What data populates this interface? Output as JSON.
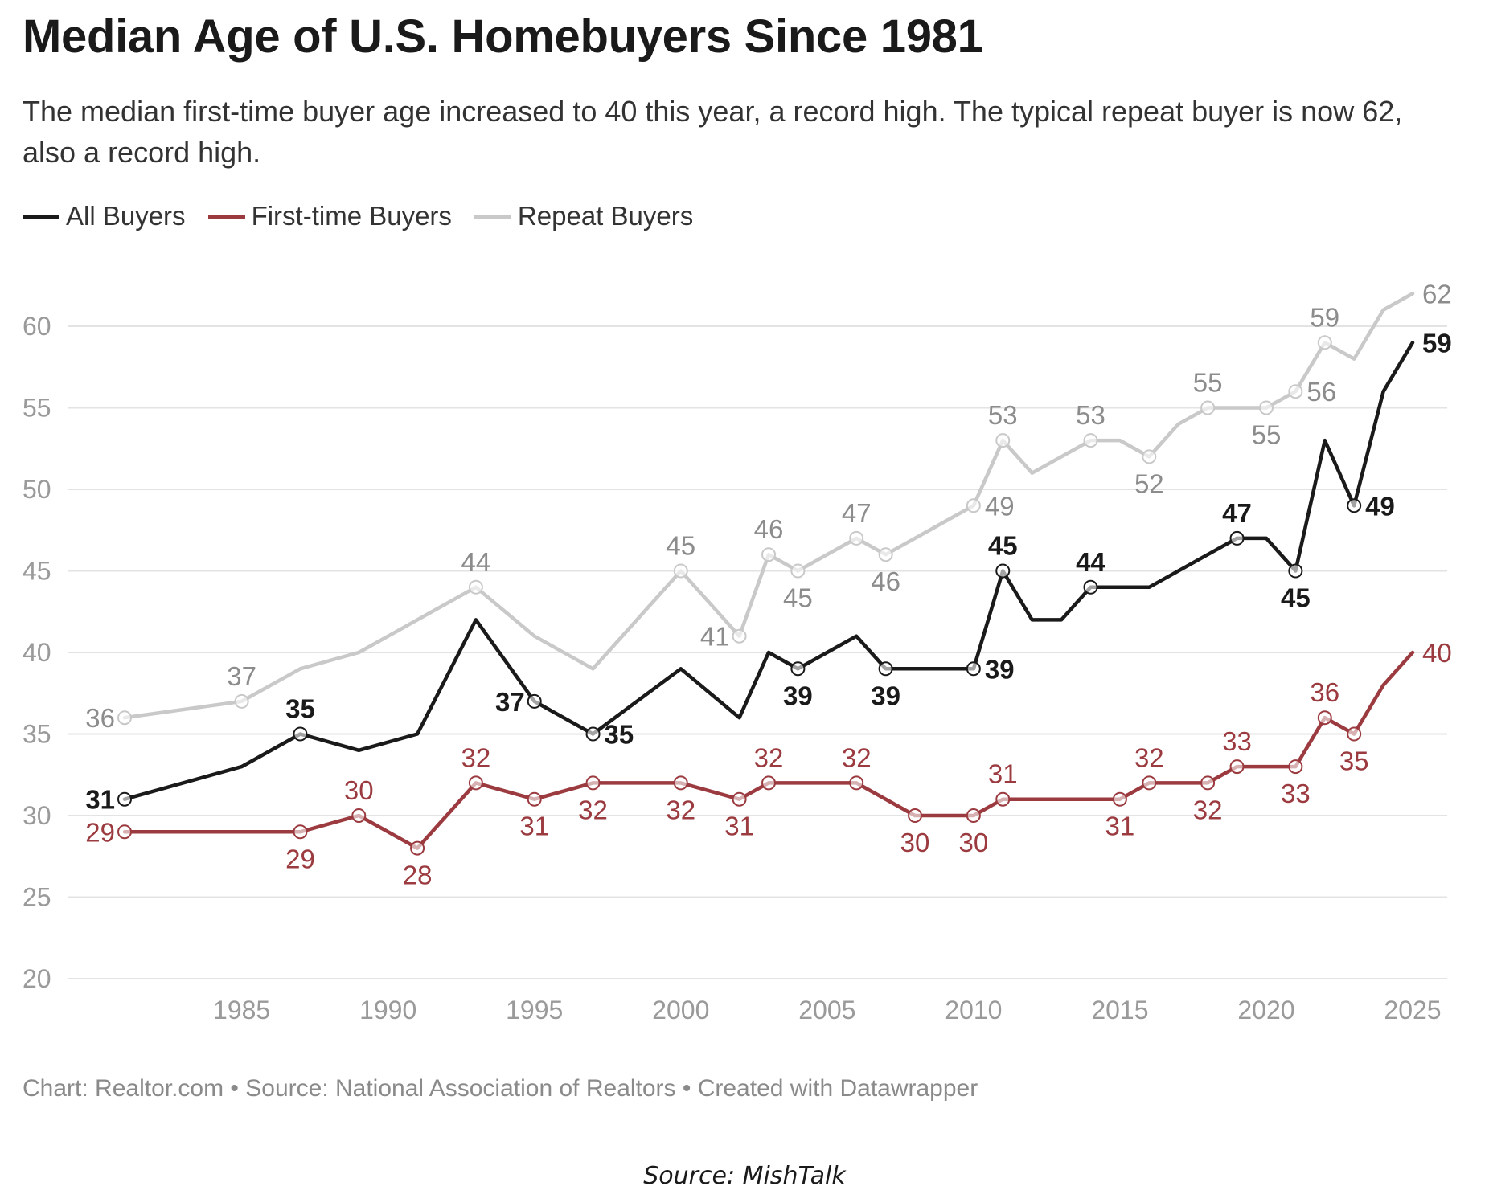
{
  "chart_data": {
    "type": "line",
    "title": "Median Age of U.S. Homebuyers Since 1981",
    "subtitle": "The median first-time buyer age increased to 40 this year, a record high. The typical repeat buyer is now 62, also a record high.",
    "xlabel": "",
    "ylabel": "",
    "xlim": [
      1981,
      2025
    ],
    "ylim": [
      20,
      62
    ],
    "yticks": [
      20,
      25,
      30,
      35,
      40,
      45,
      50,
      55,
      60
    ],
    "xticks": [
      1985,
      1990,
      1995,
      2000,
      2005,
      2010,
      2015,
      2020,
      2025
    ],
    "grid": true,
    "legend_position": "top-left",
    "series": [
      {
        "name": "Repeat Buyers",
        "color": "#c9c9c9",
        "label_color": "#8c8c8c",
        "points": [
          {
            "x": 1981,
            "y": 36
          },
          {
            "x": 1985,
            "y": 37
          },
          {
            "x": 1987,
            "y": 39
          },
          {
            "x": 1989,
            "y": 40
          },
          {
            "x": 1993,
            "y": 44
          },
          {
            "x": 1995,
            "y": 41
          },
          {
            "x": 1997,
            "y": 39
          },
          {
            "x": 2000,
            "y": 45
          },
          {
            "x": 2002,
            "y": 41
          },
          {
            "x": 2003,
            "y": 46
          },
          {
            "x": 2004,
            "y": 45
          },
          {
            "x": 2006,
            "y": 47
          },
          {
            "x": 2007,
            "y": 46
          },
          {
            "x": 2010,
            "y": 49
          },
          {
            "x": 2011,
            "y": 53
          },
          {
            "x": 2012,
            "y": 51
          },
          {
            "x": 2014,
            "y": 53
          },
          {
            "x": 2015,
            "y": 53
          },
          {
            "x": 2016,
            "y": 52
          },
          {
            "x": 2017,
            "y": 54
          },
          {
            "x": 2018,
            "y": 55
          },
          {
            "x": 2020,
            "y": 55
          },
          {
            "x": 2021,
            "y": 56
          },
          {
            "x": 2022,
            "y": 59
          },
          {
            "x": 2023,
            "y": 58
          },
          {
            "x": 2024,
            "y": 61
          },
          {
            "x": 2025,
            "y": 62
          }
        ],
        "labels": [
          {
            "x": 1981,
            "y": 36,
            "text": "36",
            "pos": "left"
          },
          {
            "x": 1985,
            "y": 37,
            "text": "37",
            "pos": "above"
          },
          {
            "x": 1993,
            "y": 44,
            "text": "44",
            "pos": "above"
          },
          {
            "x": 2000,
            "y": 45,
            "text": "45",
            "pos": "above"
          },
          {
            "x": 2002,
            "y": 41,
            "text": "41",
            "pos": "left"
          },
          {
            "x": 2003,
            "y": 46,
            "text": "46",
            "pos": "above"
          },
          {
            "x": 2004,
            "y": 45,
            "text": "45",
            "pos": "below"
          },
          {
            "x": 2006,
            "y": 47,
            "text": "47",
            "pos": "above"
          },
          {
            "x": 2007,
            "y": 46,
            "text": "46",
            "pos": "below"
          },
          {
            "x": 2010,
            "y": 49,
            "text": "49",
            "pos": "right"
          },
          {
            "x": 2011,
            "y": 53,
            "text": "53",
            "pos": "above"
          },
          {
            "x": 2014,
            "y": 53,
            "text": "53",
            "pos": "above"
          },
          {
            "x": 2016,
            "y": 52,
            "text": "52",
            "pos": "below"
          },
          {
            "x": 2018,
            "y": 55,
            "text": "55",
            "pos": "above"
          },
          {
            "x": 2020,
            "y": 55,
            "text": "55",
            "pos": "below"
          },
          {
            "x": 2021,
            "y": 56,
            "text": "56",
            "pos": "right"
          },
          {
            "x": 2022,
            "y": 59,
            "text": "59",
            "pos": "above"
          },
          {
            "x": 2025,
            "y": 62,
            "text": "62",
            "pos": "end"
          }
        ]
      },
      {
        "name": "All Buyers",
        "color": "#1a1a1a",
        "label_color": "#1a1a1a",
        "points": [
          {
            "x": 1981,
            "y": 31
          },
          {
            "x": 1985,
            "y": 33
          },
          {
            "x": 1987,
            "y": 35
          },
          {
            "x": 1989,
            "y": 34
          },
          {
            "x": 1991,
            "y": 35
          },
          {
            "x": 1993,
            "y": 42
          },
          {
            "x": 1995,
            "y": 37
          },
          {
            "x": 1997,
            "y": 35
          },
          {
            "x": 2000,
            "y": 39
          },
          {
            "x": 2002,
            "y": 36
          },
          {
            "x": 2003,
            "y": 40
          },
          {
            "x": 2004,
            "y": 39
          },
          {
            "x": 2006,
            "y": 41
          },
          {
            "x": 2007,
            "y": 39
          },
          {
            "x": 2010,
            "y": 39
          },
          {
            "x": 2011,
            "y": 45
          },
          {
            "x": 2012,
            "y": 42
          },
          {
            "x": 2013,
            "y": 42
          },
          {
            "x": 2014,
            "y": 44
          },
          {
            "x": 2016,
            "y": 44
          },
          {
            "x": 2019,
            "y": 47
          },
          {
            "x": 2020,
            "y": 47
          },
          {
            "x": 2021,
            "y": 45
          },
          {
            "x": 2022,
            "y": 53
          },
          {
            "x": 2023,
            "y": 49
          },
          {
            "x": 2024,
            "y": 56
          },
          {
            "x": 2025,
            "y": 59
          }
        ],
        "labels": [
          {
            "x": 1981,
            "y": 31,
            "text": "31",
            "pos": "left"
          },
          {
            "x": 1987,
            "y": 35,
            "text": "35",
            "pos": "above"
          },
          {
            "x": 1995,
            "y": 37,
            "text": "37",
            "pos": "left"
          },
          {
            "x": 1997,
            "y": 35,
            "text": "35",
            "pos": "right"
          },
          {
            "x": 2004,
            "y": 39,
            "text": "39",
            "pos": "below"
          },
          {
            "x": 2007,
            "y": 39,
            "text": "39",
            "pos": "below"
          },
          {
            "x": 2010,
            "y": 39,
            "text": "39",
            "pos": "right"
          },
          {
            "x": 2011,
            "y": 45,
            "text": "45",
            "pos": "above"
          },
          {
            "x": 2014,
            "y": 44,
            "text": "44",
            "pos": "above"
          },
          {
            "x": 2019,
            "y": 47,
            "text": "47",
            "pos": "above"
          },
          {
            "x": 2021,
            "y": 45,
            "text": "45",
            "pos": "below"
          },
          {
            "x": 2023,
            "y": 49,
            "text": "49",
            "pos": "right"
          },
          {
            "x": 2025,
            "y": 59,
            "text": "59",
            "pos": "end"
          }
        ]
      },
      {
        "name": "First-time Buyers",
        "color": "#9b3a3f",
        "label_color": "#9b3a3f",
        "points": [
          {
            "x": 1981,
            "y": 29
          },
          {
            "x": 1987,
            "y": 29
          },
          {
            "x": 1989,
            "y": 30
          },
          {
            "x": 1991,
            "y": 28
          },
          {
            "x": 1993,
            "y": 32
          },
          {
            "x": 1995,
            "y": 31
          },
          {
            "x": 1997,
            "y": 32
          },
          {
            "x": 2000,
            "y": 32
          },
          {
            "x": 2002,
            "y": 31
          },
          {
            "x": 2003,
            "y": 32
          },
          {
            "x": 2006,
            "y": 32
          },
          {
            "x": 2008,
            "y": 30
          },
          {
            "x": 2010,
            "y": 30
          },
          {
            "x": 2011,
            "y": 31
          },
          {
            "x": 2015,
            "y": 31
          },
          {
            "x": 2016,
            "y": 32
          },
          {
            "x": 2018,
            "y": 32
          },
          {
            "x": 2019,
            "y": 33
          },
          {
            "x": 2021,
            "y": 33
          },
          {
            "x": 2022,
            "y": 36
          },
          {
            "x": 2023,
            "y": 35
          },
          {
            "x": 2024,
            "y": 38
          },
          {
            "x": 2025,
            "y": 40
          }
        ],
        "labels": [
          {
            "x": 1981,
            "y": 29,
            "text": "29",
            "pos": "left"
          },
          {
            "x": 1987,
            "y": 29,
            "text": "29",
            "pos": "below"
          },
          {
            "x": 1989,
            "y": 30,
            "text": "30",
            "pos": "above"
          },
          {
            "x": 1991,
            "y": 28,
            "text": "28",
            "pos": "below"
          },
          {
            "x": 1993,
            "y": 32,
            "text": "32",
            "pos": "above"
          },
          {
            "x": 1995,
            "y": 31,
            "text": "31",
            "pos": "below"
          },
          {
            "x": 1997,
            "y": 32,
            "text": "32",
            "pos": "below"
          },
          {
            "x": 2000,
            "y": 32,
            "text": "32",
            "pos": "below"
          },
          {
            "x": 2002,
            "y": 31,
            "text": "31",
            "pos": "below"
          },
          {
            "x": 2003,
            "y": 32,
            "text": "32",
            "pos": "above"
          },
          {
            "x": 2006,
            "y": 32,
            "text": "32",
            "pos": "above"
          },
          {
            "x": 2008,
            "y": 30,
            "text": "30",
            "pos": "below"
          },
          {
            "x": 2010,
            "y": 30,
            "text": "30",
            "pos": "below"
          },
          {
            "x": 2011,
            "y": 31,
            "text": "31",
            "pos": "above"
          },
          {
            "x": 2015,
            "y": 31,
            "text": "31",
            "pos": "below"
          },
          {
            "x": 2016,
            "y": 32,
            "text": "32",
            "pos": "above"
          },
          {
            "x": 2018,
            "y": 32,
            "text": "32",
            "pos": "below"
          },
          {
            "x": 2019,
            "y": 33,
            "text": "33",
            "pos": "above"
          },
          {
            "x": 2021,
            "y": 33,
            "text": "33",
            "pos": "below"
          },
          {
            "x": 2022,
            "y": 36,
            "text": "36",
            "pos": "above"
          },
          {
            "x": 2023,
            "y": 35,
            "text": "35",
            "pos": "below"
          },
          {
            "x": 2025,
            "y": 40,
            "text": "40",
            "pos": "end"
          }
        ]
      }
    ],
    "legend": [
      {
        "name": "All Buyers",
        "color": "#1a1a1a"
      },
      {
        "name": "First-time Buyers",
        "color": "#9b3a3f"
      },
      {
        "name": "Repeat Buyers",
        "color": "#c9c9c9"
      }
    ]
  },
  "credit": "Chart: Realtor.com • Source: National Association of Realtors • Created with Datawrapper",
  "source_caption": "Source: MishTalk"
}
